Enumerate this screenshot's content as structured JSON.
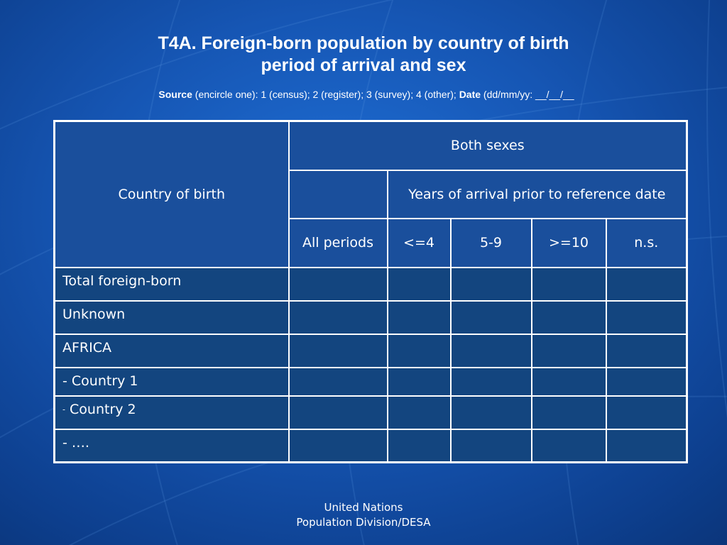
{
  "title": {
    "line1": "T4A. Foreign-born population by country of birth",
    "line2": "period of arrival and sex"
  },
  "source": {
    "source_label": "Source",
    "source_text": " (encircle one): 1 (census); 2 (register); 3 (survey); 4 (other);  ",
    "date_label": "Date",
    "date_text": " (dd/mm/yy: __/__/__"
  },
  "table": {
    "country_header": "Country of birth",
    "both_sexes": "Both sexes",
    "years_header": "Years of arrival prior to reference date",
    "columns": [
      "All periods",
      "<=4",
      "5-9",
      ">=10",
      "n.s."
    ],
    "rows": [
      {
        "prefix": "",
        "label": "Total foreign-born"
      },
      {
        "prefix": "",
        "label": "Unknown"
      },
      {
        "prefix": "",
        "label": "AFRICA"
      },
      {
        "prefix": "",
        "label": "- Country 1"
      },
      {
        "prefix": "-",
        "label": " Country 2"
      },
      {
        "prefix": "",
        "label": "- …."
      }
    ]
  },
  "footer": {
    "line1": "United Nations",
    "line2": "Population Division/DESA"
  }
}
